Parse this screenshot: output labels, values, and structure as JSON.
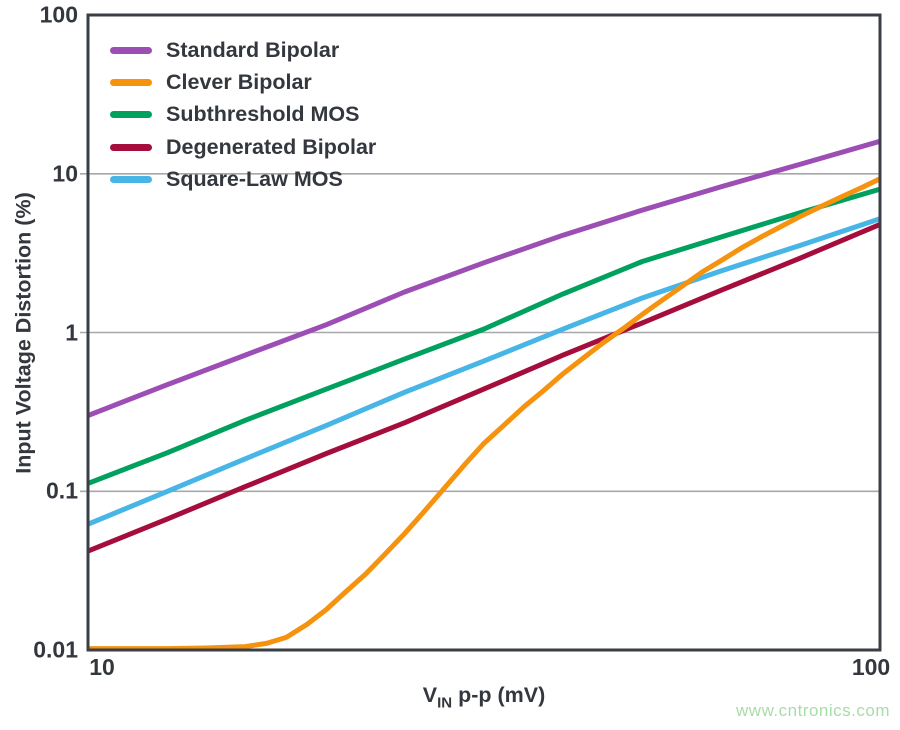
{
  "chart_data": {
    "type": "line",
    "title": "",
    "ylabel": "Input Voltage Distortion (%)",
    "xlabel_v": "V",
    "xlabel_sub": "IN",
    "xlabel_rest": " p-p (mV)",
    "x_scale": "log",
    "y_scale": "log",
    "xlim": [
      10,
      100
    ],
    "ylim": [
      0.01,
      100
    ],
    "grid": "horizontal-only",
    "gridlines_y": [
      10,
      1,
      0.1
    ],
    "legend_position": "top-left-inside",
    "x_ticks": [
      {
        "v": 10,
        "label": "10"
      },
      {
        "v": 100,
        "label": "100"
      }
    ],
    "y_ticks": [
      {
        "v": 100,
        "label": "100"
      },
      {
        "v": 10,
        "label": "10"
      },
      {
        "v": 1,
        "label": "1"
      },
      {
        "v": 0.1,
        "label": "0.1"
      },
      {
        "v": 0.01,
        "label": "0.01"
      }
    ],
    "draw_order": [
      0,
      2,
      3,
      4,
      1
    ],
    "series": [
      {
        "name": "Standard Bipolar",
        "color": "#9C4EB5",
        "points": [
          [
            10,
            0.3
          ],
          [
            12.6,
            0.47
          ],
          [
            15.8,
            0.72
          ],
          [
            20,
            1.12
          ],
          [
            25.1,
            1.8
          ],
          [
            31.6,
            2.75
          ],
          [
            39.8,
            4.1
          ],
          [
            50.1,
            5.9
          ],
          [
            63.1,
            8.3
          ],
          [
            79.4,
            11.5
          ],
          [
            100,
            16.0
          ]
        ]
      },
      {
        "name": "Clever Bipolar",
        "color": "#F5930F",
        "points": [
          [
            10,
            0.0102
          ],
          [
            12.6,
            0.0102
          ],
          [
            14.1,
            0.0103
          ],
          [
            15.8,
            0.0105
          ],
          [
            16.8,
            0.011
          ],
          [
            17.8,
            0.012
          ],
          [
            18.9,
            0.0145
          ],
          [
            20,
            0.018
          ],
          [
            21.1,
            0.023
          ],
          [
            22.4,
            0.03
          ],
          [
            23.7,
            0.04
          ],
          [
            25.1,
            0.054
          ],
          [
            26.6,
            0.075
          ],
          [
            28.2,
            0.105
          ],
          [
            30,
            0.15
          ],
          [
            31.6,
            0.2
          ],
          [
            33.5,
            0.26
          ],
          [
            35.5,
            0.34
          ],
          [
            37.6,
            0.43
          ],
          [
            39.8,
            0.55
          ],
          [
            42.2,
            0.69
          ],
          [
            44.7,
            0.86
          ],
          [
            47.3,
            1.05
          ],
          [
            50.1,
            1.3
          ],
          [
            53.1,
            1.6
          ],
          [
            56.2,
            1.95
          ],
          [
            59.6,
            2.4
          ],
          [
            63.1,
            2.85
          ],
          [
            66.8,
            3.4
          ],
          [
            70.8,
            4.0
          ],
          [
            75,
            4.65
          ],
          [
            79.4,
            5.4
          ],
          [
            84.1,
            6.2
          ],
          [
            89.1,
            7.1
          ],
          [
            94.4,
            8.1
          ],
          [
            100,
            9.3
          ]
        ]
      },
      {
        "name": "Subthreshold MOS",
        "color": "#00A15E",
        "points": [
          [
            10,
            0.112
          ],
          [
            12.6,
            0.175
          ],
          [
            15.8,
            0.28
          ],
          [
            20,
            0.44
          ],
          [
            25.1,
            0.68
          ],
          [
            31.6,
            1.05
          ],
          [
            39.8,
            1.75
          ],
          [
            50.1,
            2.8
          ],
          [
            63.1,
            4.0
          ],
          [
            79.4,
            5.7
          ],
          [
            100,
            8.0
          ]
        ]
      },
      {
        "name": "Degenerated Bipolar",
        "color": "#A50D3D",
        "points": [
          [
            10,
            0.042
          ],
          [
            12.6,
            0.067
          ],
          [
            15.8,
            0.107
          ],
          [
            20,
            0.173
          ],
          [
            25.1,
            0.27
          ],
          [
            31.6,
            0.44
          ],
          [
            39.8,
            0.72
          ],
          [
            50.1,
            1.15
          ],
          [
            63.1,
            1.85
          ],
          [
            79.4,
            2.95
          ],
          [
            100,
            4.8
          ]
        ]
      },
      {
        "name": "Square-Law MOS",
        "color": "#47B5E6",
        "points": [
          [
            10,
            0.062
          ],
          [
            12.6,
            0.1
          ],
          [
            15.8,
            0.16
          ],
          [
            20,
            0.26
          ],
          [
            25.1,
            0.42
          ],
          [
            31.6,
            0.66
          ],
          [
            39.8,
            1.05
          ],
          [
            50.1,
            1.65
          ],
          [
            63.1,
            2.45
          ],
          [
            79.4,
            3.55
          ],
          [
            100,
            5.2
          ]
        ]
      }
    ]
  },
  "watermark": "www.cntronics.com",
  "colors": {
    "text": "#33373E",
    "frame": "#3A3F46",
    "grid": "#A6A8AB",
    "watermark_green": "#A8DCA8",
    "background": "#FFFFFF"
  }
}
